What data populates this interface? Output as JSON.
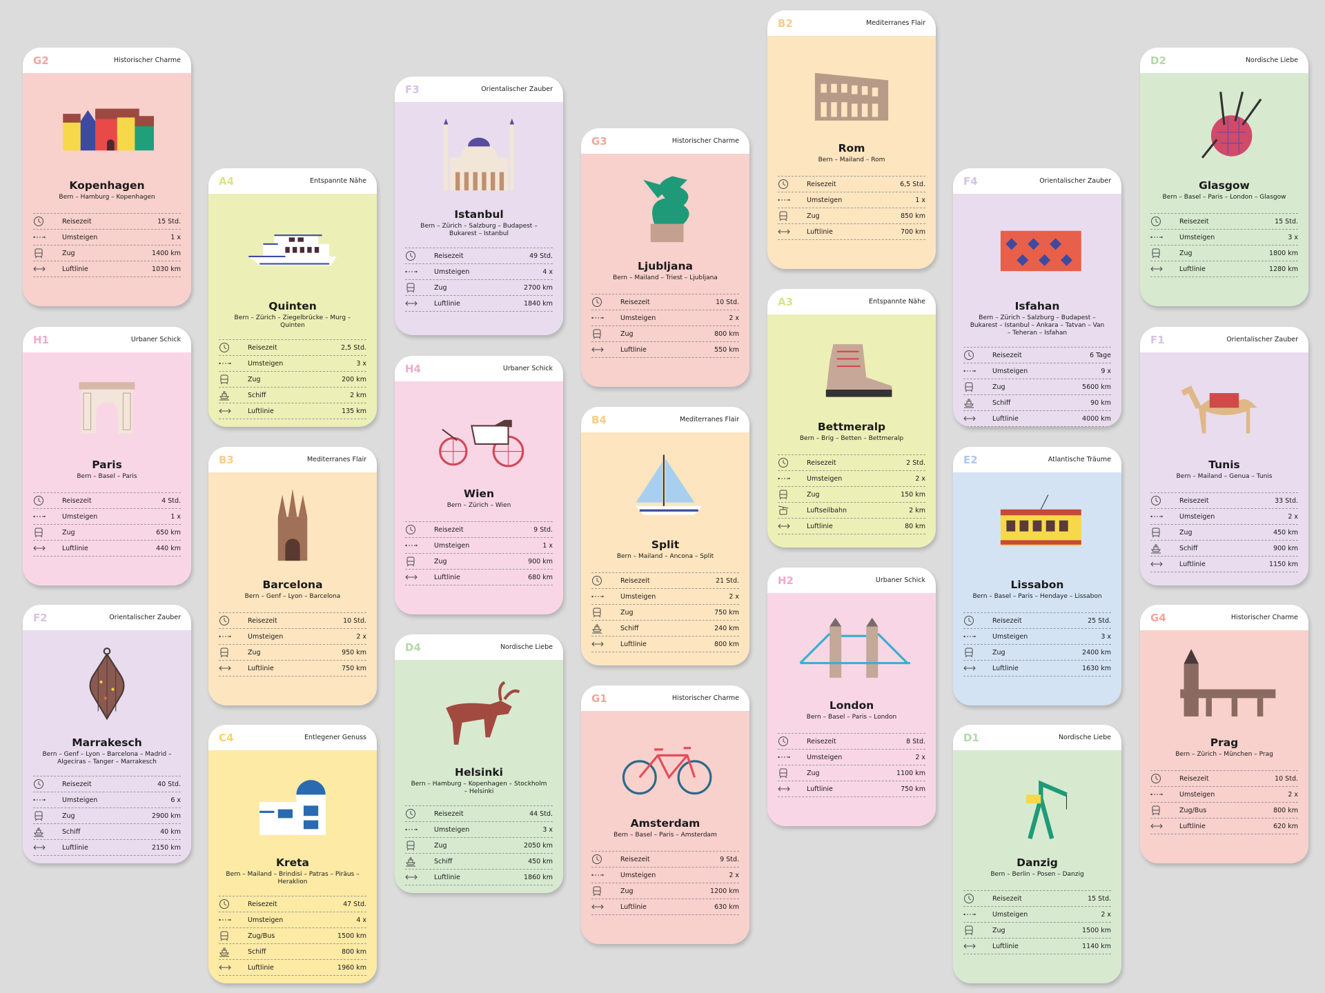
{
  "colors": {
    "background": "#dcdcdc",
    "G": {
      "bg": "#f8d0cc",
      "code": "#f2a59c"
    },
    "H": {
      "bg": "#f9d6e6",
      "code": "#f0aacd"
    },
    "F": {
      "bg": "#e8dcee",
      "code": "#d6c2e3"
    },
    "A": {
      "bg": "#edf0b6",
      "code": "#dde287"
    },
    "B": {
      "bg": "#fde5bf",
      "code": "#f7cd88"
    },
    "C": {
      "bg": "#fdeaa5",
      "code": "#f5d466"
    },
    "D": {
      "bg": "#d7ead0",
      "code": "#b4d8aa"
    },
    "E": {
      "bg": "#d3e3f4",
      "code": "#abc8ea"
    }
  },
  "cards": [
    {
      "code": "G2",
      "category": "Historischer Charme",
      "city": "Kopenhagen",
      "route": "Bern – Hamburg – Kopenhagen",
      "illustration": "colorful-houses",
      "stats": [
        {
          "icon": "clock-icon",
          "label": "Reisezeit",
          "value": "15 Std."
        },
        {
          "icon": "transfer-icon",
          "label": "Umsteigen",
          "value": "1 x"
        },
        {
          "icon": "train-icon",
          "label": "Zug",
          "value": "1400 km"
        },
        {
          "icon": "distance-arrow-icon",
          "label": "Luftlinie",
          "value": "1030 km"
        }
      ]
    },
    {
      "code": "H1",
      "category": "Urbaner Schick",
      "city": "Paris",
      "route": "Bern – Basel – Paris",
      "illustration": "arc-de-triomphe",
      "stats": [
        {
          "icon": "clock-icon",
          "label": "Reisezeit",
          "value": "4 Std."
        },
        {
          "icon": "transfer-icon",
          "label": "Umsteigen",
          "value": "1 x"
        },
        {
          "icon": "train-icon",
          "label": "Zug",
          "value": "650 km"
        },
        {
          "icon": "distance-arrow-icon",
          "label": "Luftlinie",
          "value": "440 km"
        }
      ]
    },
    {
      "code": "F2",
      "category": "Orientalischer Zauber",
      "city": "Marrakesch",
      "route": "Bern – Genf – Lyon – Barcelona – Madrid – Algeciras – Tanger – Marrakesch",
      "illustration": "lantern",
      "stats": [
        {
          "icon": "clock-icon",
          "label": "Reisezeit",
          "value": "40 Std."
        },
        {
          "icon": "transfer-icon",
          "label": "Umsteigen",
          "value": "6 x"
        },
        {
          "icon": "train-icon",
          "label": "Zug",
          "value": "2900 km"
        },
        {
          "icon": "ship-icon",
          "label": "Schiff",
          "value": "40 km"
        },
        {
          "icon": "distance-arrow-icon",
          "label": "Luftlinie",
          "value": "2150 km"
        }
      ]
    },
    {
      "code": "A4",
      "category": "Entspannte Nähe",
      "city": "Quinten",
      "route": "Bern – Zürich – Ziegelbrücke – Murg – Quinten",
      "illustration": "ship",
      "stats": [
        {
          "icon": "clock-icon",
          "label": "Reisezeit",
          "value": "2,5 Std."
        },
        {
          "icon": "transfer-icon",
          "label": "Umsteigen",
          "value": "3 x"
        },
        {
          "icon": "train-icon",
          "label": "Zug",
          "value": "200 km"
        },
        {
          "icon": "ship-icon",
          "label": "Schiff",
          "value": "2 km"
        },
        {
          "icon": "distance-arrow-icon",
          "label": "Luftlinie",
          "value": "135 km"
        }
      ]
    },
    {
      "code": "B3",
      "category": "Mediterranes Flair",
      "city": "Barcelona",
      "route": "Bern – Genf – Lyon – Barcelona",
      "illustration": "cathedral",
      "stats": [
        {
          "icon": "clock-icon",
          "label": "Reisezeit",
          "value": "10 Std."
        },
        {
          "icon": "transfer-icon",
          "label": "Umsteigen",
          "value": "2 x"
        },
        {
          "icon": "train-icon",
          "label": "Zug",
          "value": "950 km"
        },
        {
          "icon": "distance-arrow-icon",
          "label": "Luftlinie",
          "value": "750 km"
        }
      ]
    },
    {
      "code": "C4",
      "category": "Entlegener Genuss",
      "city": "Kreta",
      "route": "Bern – Mailand – Brindisi – Patras – Piräus – Heraklion",
      "illustration": "greek-house",
      "stats": [
        {
          "icon": "clock-icon",
          "label": "Reisezeit",
          "value": "47 Std."
        },
        {
          "icon": "transfer-icon",
          "label": "Umsteigen",
          "value": "4 x"
        },
        {
          "icon": "train-icon",
          "label": "Zug/Bus",
          "value": "1500 km"
        },
        {
          "icon": "ship-icon",
          "label": "Schiff",
          "value": "800 km"
        },
        {
          "icon": "distance-arrow-icon",
          "label": "Luftlinie",
          "value": "1960 km"
        }
      ]
    },
    {
      "code": "F3",
      "category": "Orientalischer Zauber",
      "city": "Istanbul",
      "route": "Bern – Zürich – Salzburg – Budapest – Bukarest – Istanbul",
      "illustration": "mosque",
      "stats": [
        {
          "icon": "clock-icon",
          "label": "Reisezeit",
          "value": "49 Std."
        },
        {
          "icon": "transfer-icon",
          "label": "Umsteigen",
          "value": "4 x"
        },
        {
          "icon": "train-icon",
          "label": "Zug",
          "value": "2700 km"
        },
        {
          "icon": "distance-arrow-icon",
          "label": "Luftlinie",
          "value": "1840 km"
        }
      ]
    },
    {
      "code": "H4",
      "category": "Urbaner Schick",
      "city": "Wien",
      "route": "Bern – Zürich – Wien",
      "illustration": "carriage",
      "stats": [
        {
          "icon": "clock-icon",
          "label": "Reisezeit",
          "value": "9 Std."
        },
        {
          "icon": "transfer-icon",
          "label": "Umsteigen",
          "value": "1 x"
        },
        {
          "icon": "train-icon",
          "label": "Zug",
          "value": "900 km"
        },
        {
          "icon": "distance-arrow-icon",
          "label": "Luftlinie",
          "value": "680 km"
        }
      ]
    },
    {
      "code": "D4",
      "category": "Nordische Liebe",
      "city": "Helsinki",
      "route": "Bern – Hamburg – Kopenhagen – Stockholm – Helsinki",
      "illustration": "moose",
      "stats": [
        {
          "icon": "clock-icon",
          "label": "Reisezeit",
          "value": "44 Std."
        },
        {
          "icon": "transfer-icon",
          "label": "Umsteigen",
          "value": "3 x"
        },
        {
          "icon": "train-icon",
          "label": "Zug",
          "value": "2050 km"
        },
        {
          "icon": "ship-icon",
          "label": "Schiff",
          "value": "450 km"
        },
        {
          "icon": "distance-arrow-icon",
          "label": "Luftlinie",
          "value": "1860 km"
        }
      ]
    },
    {
      "code": "G3",
      "category": "Historischer Charme",
      "city": "Ljubljana",
      "route": "Bern – Mailand – Triest – Ljubljana",
      "illustration": "dragon",
      "stats": [
        {
          "icon": "clock-icon",
          "label": "Reisezeit",
          "value": "10 Std."
        },
        {
          "icon": "transfer-icon",
          "label": "Umsteigen",
          "value": "2 x"
        },
        {
          "icon": "train-icon",
          "label": "Zug",
          "value": "800 km"
        },
        {
          "icon": "distance-arrow-icon",
          "label": "Luftlinie",
          "value": "550 km"
        }
      ]
    },
    {
      "code": "B4",
      "category": "Mediterranes Flair",
      "city": "Split",
      "route": "Bern – Mailand – Ancona – Split",
      "illustration": "sailboat",
      "stats": [
        {
          "icon": "clock-icon",
          "label": "Reisezeit",
          "value": "21 Std."
        },
        {
          "icon": "transfer-icon",
          "label": "Umsteigen",
          "value": "2 x"
        },
        {
          "icon": "train-icon",
          "label": "Zug",
          "value": "750 km"
        },
        {
          "icon": "ship-icon",
          "label": "Schiff",
          "value": "240 km"
        },
        {
          "icon": "distance-arrow-icon",
          "label": "Luftlinie",
          "value": "800 km"
        }
      ]
    },
    {
      "code": "G1",
      "category": "Historischer Charme",
      "city": "Amsterdam",
      "route": "Bern – Basel – Paris – Amsterdam",
      "illustration": "bicycle",
      "stats": [
        {
          "icon": "clock-icon",
          "label": "Reisezeit",
          "value": "9 Std."
        },
        {
          "icon": "transfer-icon",
          "label": "Umsteigen",
          "value": "2 x"
        },
        {
          "icon": "train-icon",
          "label": "Zug",
          "value": "1200 km"
        },
        {
          "icon": "distance-arrow-icon",
          "label": "Luftlinie",
          "value": "630 km"
        }
      ]
    },
    {
      "code": "B2",
      "category": "Mediterranes Flair",
      "city": "Rom",
      "route": "Bern – Mailand – Rom",
      "illustration": "colosseum",
      "stats": [
        {
          "icon": "clock-icon",
          "label": "Reisezeit",
          "value": "6,5 Std."
        },
        {
          "icon": "transfer-icon",
          "label": "Umsteigen",
          "value": "1 x"
        },
        {
          "icon": "train-icon",
          "label": "Zug",
          "value": "850 km"
        },
        {
          "icon": "distance-arrow-icon",
          "label": "Luftlinie",
          "value": "700 km"
        }
      ]
    },
    {
      "code": "A3",
      "category": "Entspannte Nähe",
      "city": "Bettmeralp",
      "route": "Bern – Brig – Betten – Bettmeralp",
      "illustration": "hiking-boot",
      "stats": [
        {
          "icon": "clock-icon",
          "label": "Reisezeit",
          "value": "2 Std."
        },
        {
          "icon": "transfer-icon",
          "label": "Umsteigen",
          "value": "2 x"
        },
        {
          "icon": "train-icon",
          "label": "Zug",
          "value": "150 km"
        },
        {
          "icon": "cable-car-icon",
          "label": "Luftseilbahn",
          "value": "2 km"
        },
        {
          "icon": "distance-arrow-icon",
          "label": "Luftlinie",
          "value": "80 km"
        }
      ]
    },
    {
      "code": "H2",
      "category": "Urbaner Schick",
      "city": "London",
      "route": "Bern – Basel – Paris – London",
      "illustration": "tower-bridge",
      "stats": [
        {
          "icon": "clock-icon",
          "label": "Reisezeit",
          "value": "8 Std."
        },
        {
          "icon": "transfer-icon",
          "label": "Umsteigen",
          "value": "2 x"
        },
        {
          "icon": "train-icon",
          "label": "Zug",
          "value": "1100 km"
        },
        {
          "icon": "distance-arrow-icon",
          "label": "Luftlinie",
          "value": "750 km"
        }
      ]
    },
    {
      "code": "F4",
      "category": "Orientalischer Zauber",
      "city": "Isfahan",
      "route": "Bern – Zürich – Salzburg – Budapest – Bukarest – Istanbul – Ankara – Tatvan – Van – Teheran – Isfahan",
      "illustration": "rug",
      "stats": [
        {
          "icon": "clock-icon",
          "label": "Reisezeit",
          "value": "6 Tage"
        },
        {
          "icon": "transfer-icon",
          "label": "Umsteigen",
          "value": "9 x"
        },
        {
          "icon": "train-icon",
          "label": "Zug",
          "value": "5600 km"
        },
        {
          "icon": "ship-icon",
          "label": "Schiff",
          "value": "90 km"
        },
        {
          "icon": "distance-arrow-icon",
          "label": "Luftlinie",
          "value": "4000 km"
        }
      ]
    },
    {
      "code": "E2",
      "category": "Atlantische Träume",
      "city": "Lissabon",
      "route": "Bern – Basel – Paris – Hendaye – Lissabon",
      "illustration": "tram",
      "stats": [
        {
          "icon": "clock-icon",
          "label": "Reisezeit",
          "value": "25 Std."
        },
        {
          "icon": "transfer-icon",
          "label": "Umsteigen",
          "value": "3 x"
        },
        {
          "icon": "train-icon",
          "label": "Zug",
          "value": "2400 km"
        },
        {
          "icon": "distance-arrow-icon",
          "label": "Luftlinie",
          "value": "1630 km"
        }
      ]
    },
    {
      "code": "D1",
      "category": "Nordische Liebe",
      "city": "Danzig",
      "route": "Bern – Berlin – Posen – Danzig",
      "illustration": "crane",
      "stats": [
        {
          "icon": "clock-icon",
          "label": "Reisezeit",
          "value": "15 Std."
        },
        {
          "icon": "transfer-icon",
          "label": "Umsteigen",
          "value": "2 x"
        },
        {
          "icon": "train-icon",
          "label": "Zug",
          "value": "1500 km"
        },
        {
          "icon": "distance-arrow-icon",
          "label": "Luftlinie",
          "value": "1140 km"
        }
      ]
    },
    {
      "code": "D2",
      "category": "Nordische Liebe",
      "city": "Glasgow",
      "route": "Bern – Basel – Paris – London – Glasgow",
      "illustration": "bagpipe",
      "stats": [
        {
          "icon": "clock-icon",
          "label": "Reisezeit",
          "value": "15 Std."
        },
        {
          "icon": "transfer-icon",
          "label": "Umsteigen",
          "value": "3 x"
        },
        {
          "icon": "train-icon",
          "label": "Zug",
          "value": "1800 km"
        },
        {
          "icon": "distance-arrow-icon",
          "label": "Luftlinie",
          "value": "1280 km"
        }
      ]
    },
    {
      "code": "F1",
      "category": "Orientalischer Zauber",
      "city": "Tunis",
      "route": "Bern – Mailand – Genua – Tunis",
      "illustration": "camel",
      "stats": [
        {
          "icon": "clock-icon",
          "label": "Reisezeit",
          "value": "33 Std."
        },
        {
          "icon": "transfer-icon",
          "label": "Umsteigen",
          "value": "2 x"
        },
        {
          "icon": "train-icon",
          "label": "Zug",
          "value": "450 km"
        },
        {
          "icon": "ship-icon",
          "label": "Schiff",
          "value": "900 km"
        },
        {
          "icon": "distance-arrow-icon",
          "label": "Luftlinie",
          "value": "1150 km"
        }
      ]
    },
    {
      "code": "G4",
      "category": "Historischer Charme",
      "city": "Prag",
      "route": "Bern – Zürich – München – Prag",
      "illustration": "charles-bridge",
      "stats": [
        {
          "icon": "clock-icon",
          "label": "Reisezeit",
          "value": "10 Std."
        },
        {
          "icon": "transfer-icon",
          "label": "Umsteigen",
          "value": "2 x"
        },
        {
          "icon": "train-icon",
          "label": "Zug/Bus",
          "value": "800 km"
        },
        {
          "icon": "distance-arrow-icon",
          "label": "Luftlinie",
          "value": "620 km"
        }
      ]
    }
  ]
}
